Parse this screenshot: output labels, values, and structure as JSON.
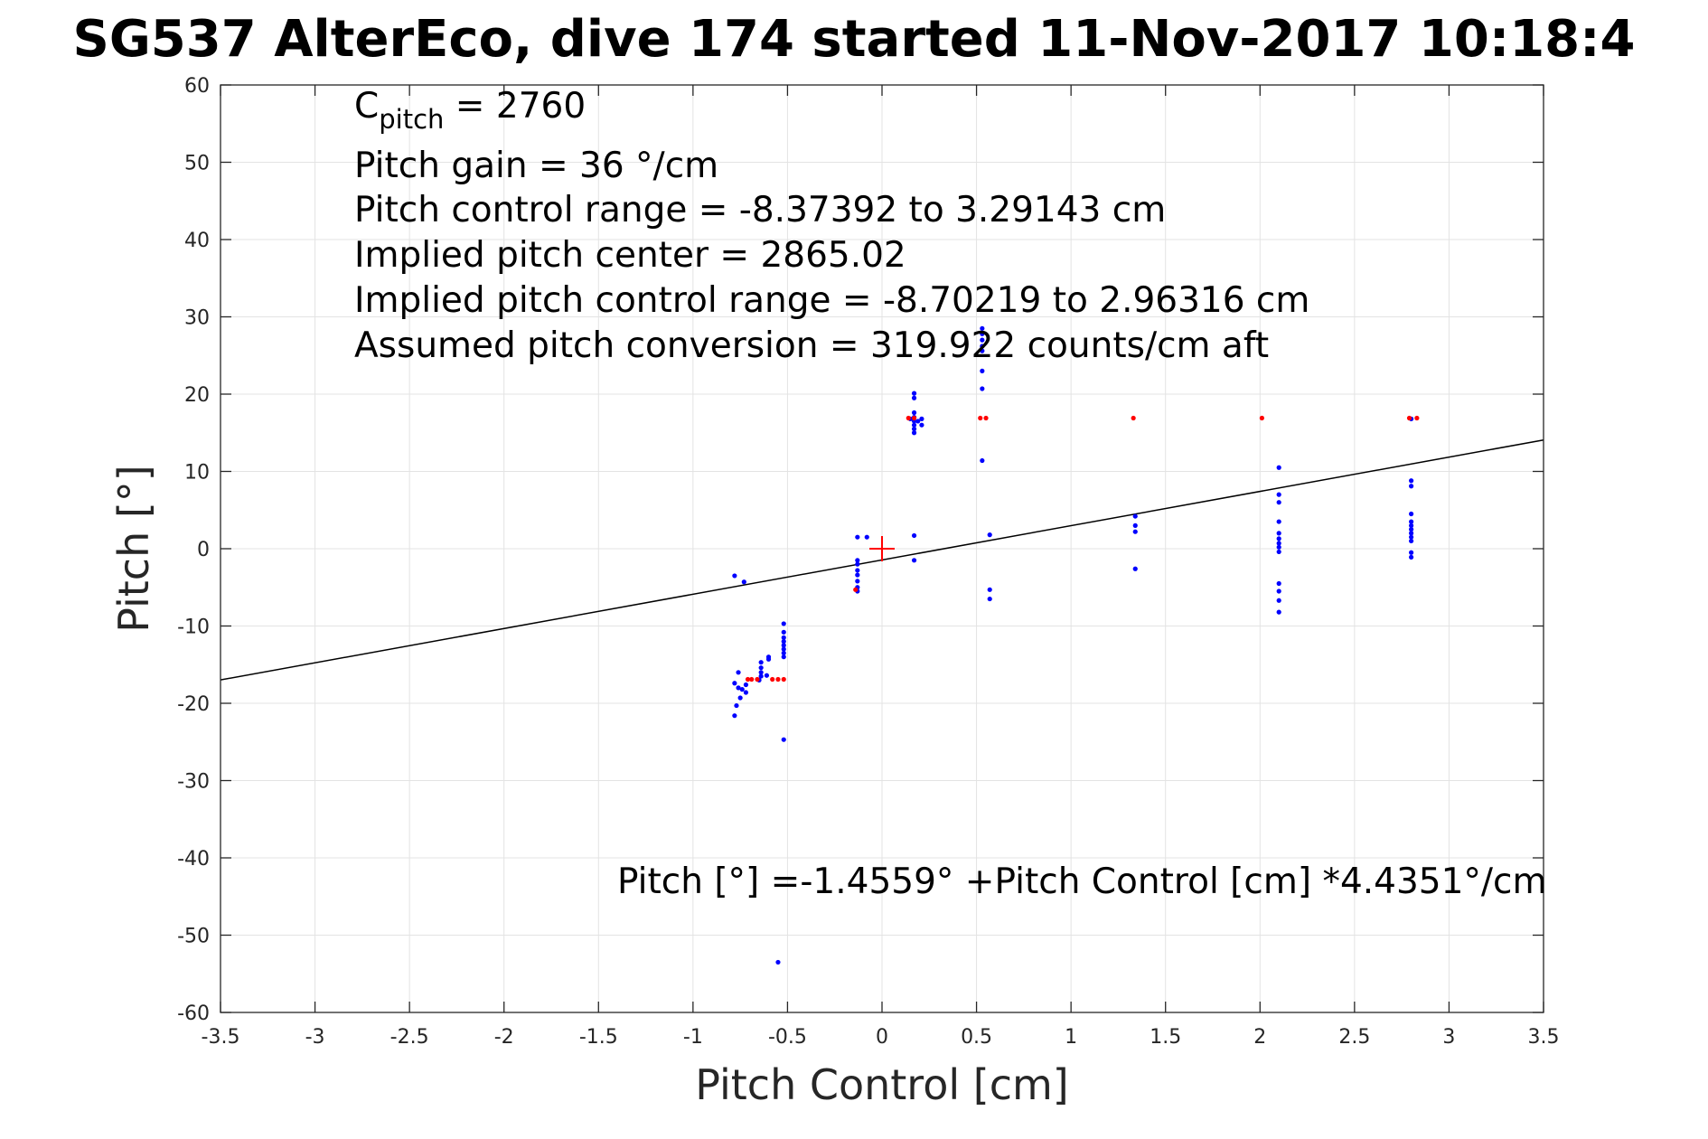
{
  "chart_data": {
    "type": "scatter",
    "title": "SG537 AlterEco, dive 174 started 11-Nov-2017 10:18:4",
    "xlabel": "Pitch Control [cm]",
    "ylabel": "Pitch [°]",
    "xlim": [
      -3.5,
      3.5
    ],
    "ylim": [
      -60,
      60
    ],
    "xticks": [
      -3.5,
      -3,
      -2.5,
      -2,
      -1.5,
      -1,
      -0.5,
      0,
      0.5,
      1,
      1.5,
      2,
      2.5,
      3,
      3.5
    ],
    "yticks": [
      -60,
      -50,
      -40,
      -30,
      -20,
      -10,
      0,
      10,
      20,
      30,
      40,
      50,
      60
    ],
    "grid": true,
    "colors": {
      "blue": "#0000ff",
      "red": "#ff0000",
      "line": "#000000",
      "grid": "#e3e3e3"
    },
    "annotations": {
      "c_pitch": {
        "main": "C",
        "sub": "pitch",
        "rest": " = 2760"
      },
      "lines": [
        "Pitch gain = 36 °/cm",
        "Pitch control range = -8.37392 to 3.29143 cm",
        "Implied pitch center = 2865.02",
        "Implied pitch control range = -8.70219 to 2.96316 cm",
        "Assumed pitch conversion = 319.922 counts/cm aft"
      ],
      "fit_equation": "Pitch [°] =-1.4559° +Pitch Control [cm] *4.4351°/cm"
    },
    "fit_line": {
      "intercept": -1.4559,
      "slope": 4.4351
    },
    "center_marker": {
      "x": 0,
      "y": 0,
      "color": "#ff0000"
    },
    "series": [
      {
        "color": "#0000ff",
        "points": [
          [
            -0.78,
            -3.5
          ],
          [
            -0.73,
            -4.3
          ],
          [
            -0.76,
            -16.0
          ],
          [
            -0.78,
            -17.4
          ],
          [
            -0.76,
            -18.0
          ],
          [
            -0.74,
            -18.2
          ],
          [
            -0.72,
            -18.6
          ],
          [
            -0.75,
            -19.3
          ],
          [
            -0.77,
            -20.3
          ],
          [
            -0.78,
            -21.6
          ],
          [
            -0.72,
            -17.6
          ],
          [
            -0.64,
            -14.7
          ],
          [
            -0.64,
            -15.4
          ],
          [
            -0.64,
            -16.0
          ],
          [
            -0.64,
            -16.5
          ],
          [
            -0.65,
            -17.0
          ],
          [
            -0.6,
            -14.0
          ],
          [
            -0.6,
            -14.3
          ],
          [
            -0.61,
            -16.4
          ],
          [
            -0.52,
            -9.7
          ],
          [
            -0.52,
            -10.8
          ],
          [
            -0.52,
            -11.5
          ],
          [
            -0.52,
            -12.0
          ],
          [
            -0.52,
            -12.5
          ],
          [
            -0.52,
            -13.0
          ],
          [
            -0.52,
            -13.5
          ],
          [
            -0.52,
            -14.0
          ],
          [
            -0.52,
            -24.7
          ],
          [
            -0.55,
            -53.5
          ],
          [
            -0.13,
            1.5
          ],
          [
            -0.08,
            1.5
          ],
          [
            -0.13,
            -1.5
          ],
          [
            -0.13,
            -2.0
          ],
          [
            -0.13,
            -2.8
          ],
          [
            -0.13,
            -3.4
          ],
          [
            -0.13,
            -4.2
          ],
          [
            -0.13,
            -5.0
          ],
          [
            -0.13,
            -5.5
          ],
          [
            0.17,
            20.1
          ],
          [
            0.17,
            19.5
          ],
          [
            0.17,
            17.6
          ],
          [
            0.17,
            17.0
          ],
          [
            0.17,
            16.5
          ],
          [
            0.17,
            16.0
          ],
          [
            0.17,
            15.5
          ],
          [
            0.17,
            15.0
          ],
          [
            0.19,
            16.5
          ],
          [
            0.21,
            16.8
          ],
          [
            0.21,
            16.0
          ],
          [
            0.15,
            16.8
          ],
          [
            0.17,
            1.7
          ],
          [
            0.17,
            -1.5
          ],
          [
            0.53,
            28.5
          ],
          [
            0.53,
            27.8
          ],
          [
            0.53,
            27.0
          ],
          [
            0.53,
            26.2
          ],
          [
            0.53,
            25.6
          ],
          [
            0.53,
            23.0
          ],
          [
            0.53,
            20.7
          ],
          [
            0.53,
            11.4
          ],
          [
            0.57,
            1.8
          ],
          [
            0.57,
            -5.3
          ],
          [
            0.57,
            -6.5
          ],
          [
            1.34,
            4.2
          ],
          [
            1.34,
            3.0
          ],
          [
            1.34,
            2.2
          ],
          [
            1.34,
            -2.6
          ],
          [
            2.1,
            10.5
          ],
          [
            2.1,
            7.0
          ],
          [
            2.1,
            6.0
          ],
          [
            2.1,
            3.5
          ],
          [
            2.1,
            2.0
          ],
          [
            2.1,
            1.3
          ],
          [
            2.1,
            0.7
          ],
          [
            2.1,
            0.2
          ],
          [
            2.1,
            -0.4
          ],
          [
            2.1,
            -4.5
          ],
          [
            2.1,
            -5.5
          ],
          [
            2.1,
            -6.7
          ],
          [
            2.1,
            -8.2
          ],
          [
            2.8,
            16.8
          ],
          [
            2.8,
            8.8
          ],
          [
            2.8,
            8.1
          ],
          [
            2.8,
            4.5
          ],
          [
            2.8,
            3.5
          ],
          [
            2.8,
            3.0
          ],
          [
            2.8,
            2.5
          ],
          [
            2.8,
            2.0
          ],
          [
            2.8,
            1.5
          ],
          [
            2.8,
            1.0
          ],
          [
            2.8,
            -0.5
          ],
          [
            2.8,
            -1.1
          ]
        ]
      },
      {
        "color": "#ff0000",
        "points": [
          [
            -0.71,
            -16.9
          ],
          [
            -0.69,
            -16.9
          ],
          [
            -0.66,
            -16.9
          ],
          [
            -0.58,
            -16.9
          ],
          [
            -0.55,
            -16.9
          ],
          [
            -0.52,
            -16.9
          ],
          [
            -0.14,
            -5.3
          ],
          [
            0.14,
            16.9
          ],
          [
            0.17,
            16.9
          ],
          [
            0.52,
            16.9
          ],
          [
            0.55,
            16.9
          ],
          [
            1.33,
            16.9
          ],
          [
            2.01,
            16.9
          ],
          [
            2.79,
            16.9
          ],
          [
            2.83,
            16.9
          ]
        ]
      }
    ]
  }
}
